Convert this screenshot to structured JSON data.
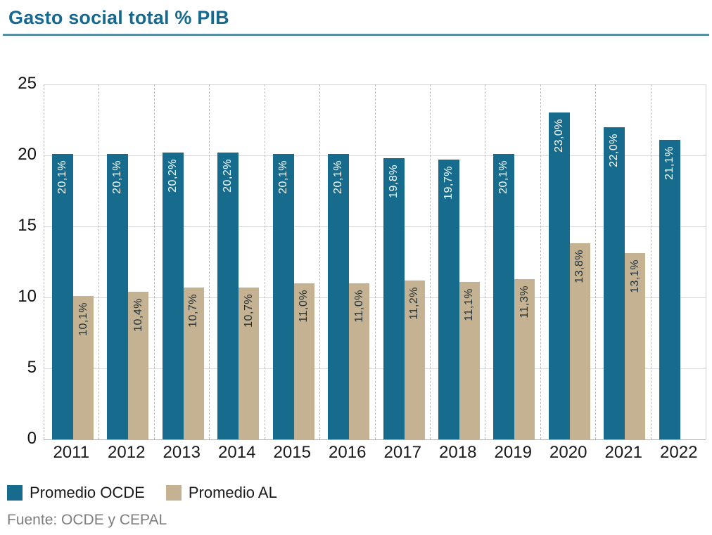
{
  "title": "Gasto social total % PIB",
  "source": "Fuente: OCDE y CEPAL",
  "colors": {
    "title": "#166a90",
    "title_rule": "#558fa6",
    "ocde_bar": "#176c8e",
    "al_bar": "#c5b292",
    "ocde_label_text": "#ffffff",
    "al_label_text": "#1f3038",
    "gridline": "#d9d9d9",
    "dashed_separator": "#b9b9b9"
  },
  "legend": {
    "items": [
      {
        "label": "Promedio OCDE",
        "color": "#176c8e"
      },
      {
        "label": "Promedio AL",
        "color": "#c5b292"
      }
    ]
  },
  "y_axis": {
    "ticks": [
      "25",
      "20",
      "15",
      "10",
      "5",
      "0"
    ],
    "max": 25
  },
  "chart_data": {
    "type": "bar",
    "title": "Gasto social total % PIB",
    "categories": [
      "2011",
      "2012",
      "2013",
      "2014",
      "2015",
      "2016",
      "2017",
      "2018",
      "2019",
      "2020",
      "2021",
      "2022"
    ],
    "series": [
      {
        "name": "Promedio OCDE",
        "color": "#176c8e",
        "values": [
          20.1,
          20.1,
          20.2,
          20.2,
          20.1,
          20.1,
          19.8,
          19.7,
          20.1,
          23.0,
          22.0,
          21.1
        ],
        "labels": [
          "20,1%",
          "20,1%",
          "20,2%",
          "20,2%",
          "20,1%",
          "20,1%",
          "19,8%",
          "19,7%",
          "20,1%",
          "23,0%",
          "22,0%",
          "21,1%"
        ]
      },
      {
        "name": "Promedio AL",
        "color": "#c5b292",
        "values": [
          10.1,
          10.4,
          10.7,
          10.7,
          11.0,
          11.0,
          11.2,
          11.1,
          11.3,
          13.8,
          13.1,
          null
        ],
        "labels": [
          "10,1%",
          "10,4%",
          "10,7%",
          "10,7%",
          "11,0%",
          "11,0%",
          "11,2%",
          "11,1%",
          "11,3%",
          "13,8%",
          "13,1%",
          null
        ]
      }
    ],
    "xlabel": "",
    "ylabel": "",
    "ylim": [
      0,
      25
    ],
    "y_tick_step": 5,
    "grid": "horizontal solid lines at each tick, vertical dashed separators between year groups",
    "value_labels": "rotated 90deg, placed near top inside each bar",
    "legend_position": "bottom-left",
    "source": "Fuente: OCDE y CEPAL"
  }
}
